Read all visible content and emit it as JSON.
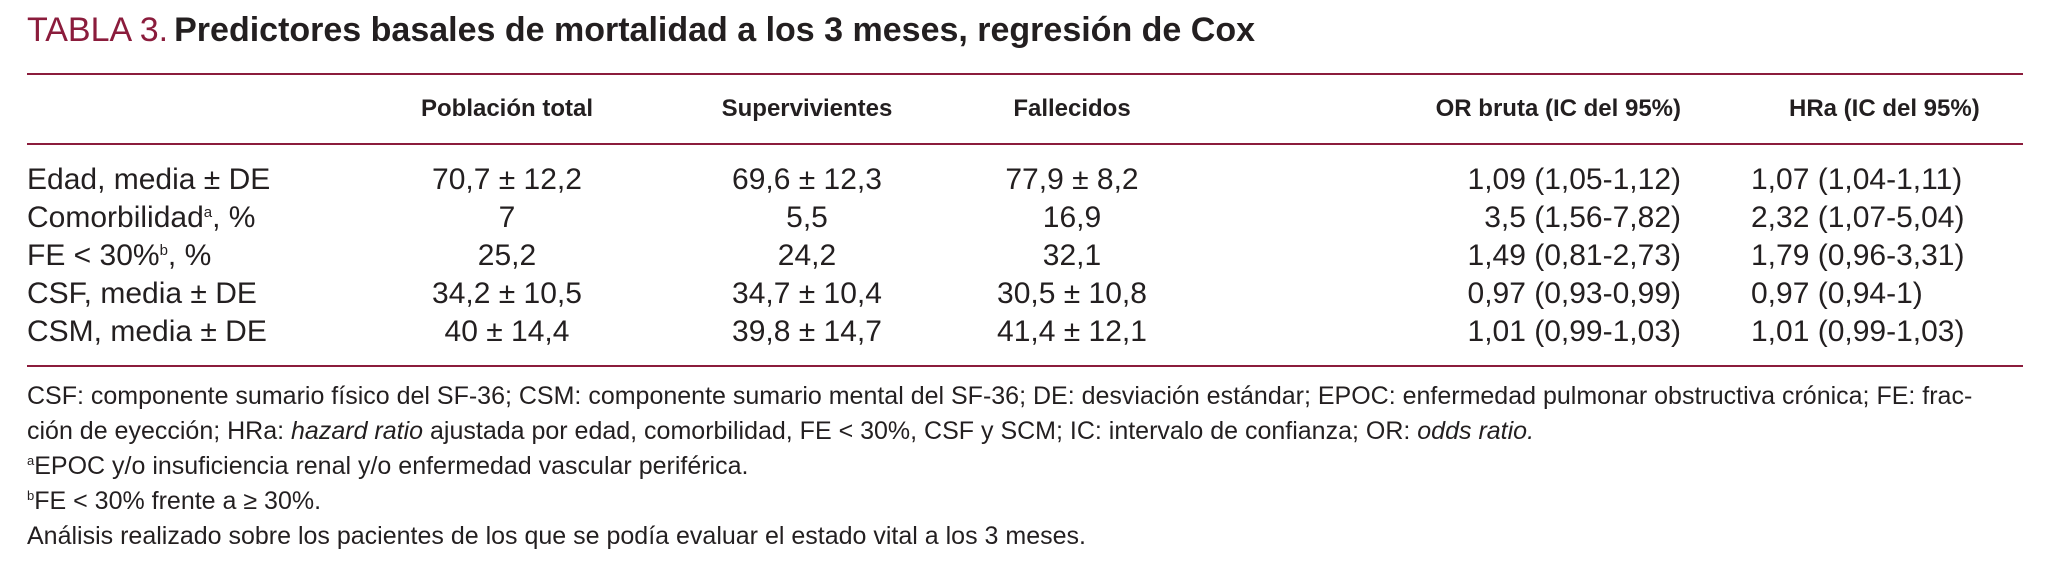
{
  "title": {
    "label": "TABLA 3.",
    "text": "Predictores basales de mortalidad a los 3 meses, regresión de Cox"
  },
  "columns": {
    "c0": "",
    "c1": "Población total",
    "c2": "Supervivientes",
    "c3": "Fallecidos",
    "c4": "OR bruta (IC del 95%)",
    "c5": "HRa (IC del 95%)"
  },
  "rows": [
    {
      "label": "Edad, media ± DE",
      "sup": "",
      "label_after": "",
      "total": "70,7 ± 12,2",
      "surv": "69,6 ± 12,3",
      "dead": "77,9 ± 8,2",
      "or": "1,09 (1,05-1,12)",
      "hr": "1,07 (1,04-1,11)"
    },
    {
      "label": "Comorbilidad",
      "sup": "a",
      "label_after": ", %",
      "total": "7",
      "surv": "5,5",
      "dead": "16,9",
      "or": "3,5 (1,56-7,82)",
      "hr": "2,32 (1,07-5,04)"
    },
    {
      "label": "FE < 30%",
      "sup": "b",
      "label_after": ", %",
      "total": "25,2",
      "surv": "24,2",
      "dead": "32,1",
      "or": "1,49 (0,81-2,73)",
      "hr": "1,79 (0,96-3,31)"
    },
    {
      "label": "CSF, media ± DE",
      "sup": "",
      "label_after": "",
      "total": "34,2 ± 10,5",
      "surv": "34,7 ± 10,4",
      "dead": "30,5 ± 10,8",
      "or": "0,97 (0,93-0,99)",
      "hr": "0,97 (0,94-1)"
    },
    {
      "label": "CSM, media ± DE",
      "sup": "",
      "label_after": "",
      "total": "40 ± 14,4",
      "surv": "39,8 ± 14,7",
      "dead": "41,4 ± 12,1",
      "or": "1,01 (0,99-1,03)",
      "hr": "1,01 (0,99-1,03)"
    }
  ],
  "footnotes": {
    "abbrev_1": "CSF: componente sumario físico del SF-36; CSM: componente sumario mental del SF-36; DE: desviación estándar; EPOC: enfermedad pulmonar obstructiva crónica; FE: frac-",
    "abbrev_2a": "ción de eyección; HRa: ",
    "abbrev_2_hazard": "hazard ratio",
    "abbrev_2b": " ajustada por edad, comorbilidad, FE < 30%, CSF y SCM; IC: intervalo de confianza; OR: ",
    "abbrev_2_odds": "odds ratio.",
    "note_a_mark": "a",
    "note_a": "EPOC y/o insuficiencia renal y/o enfermedad vascular periférica.",
    "note_b_mark": "b",
    "note_b": "FE < 30% frente a ≥ 30%.",
    "analysis": "Análisis realizado sobre los pacientes de los que se podía evaluar el estado vital a los 3 meses."
  },
  "colors": {
    "accent": "#8b1c3c",
    "text": "#231f20"
  }
}
